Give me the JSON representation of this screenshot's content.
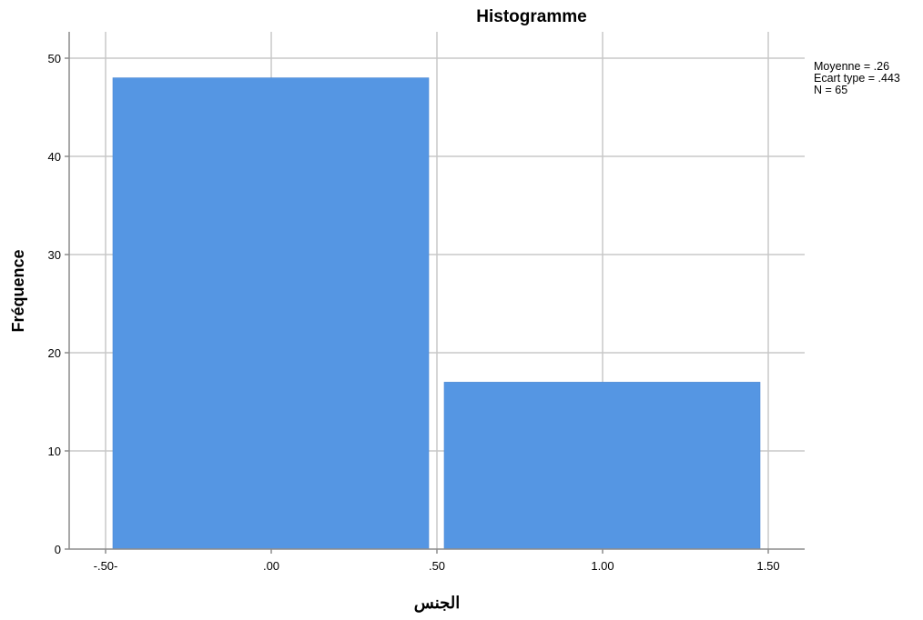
{
  "chart_data": {
    "type": "bar",
    "title": "Histogramme",
    "xlabel": "الجنس",
    "ylabel": "Fréquence",
    "bins": [
      {
        "from": -0.5,
        "to": 0.5,
        "value": 48
      },
      {
        "from": 0.5,
        "to": 1.5,
        "value": 17
      }
    ],
    "xlim": [
      -0.5,
      1.5
    ],
    "ylim": [
      0,
      50
    ],
    "x_ticks": [
      {
        "value": -0.5,
        "label": "-.50-"
      },
      {
        "value": 0.0,
        "label": ".00"
      },
      {
        "value": 0.5,
        "label": ".50"
      },
      {
        "value": 1.0,
        "label": "1.00"
      },
      {
        "value": 1.5,
        "label": "1.50"
      }
    ],
    "y_ticks": [
      {
        "value": 0,
        "label": "0"
      },
      {
        "value": 10,
        "label": "10"
      },
      {
        "value": 20,
        "label": "20"
      },
      {
        "value": 30,
        "label": "30"
      },
      {
        "value": 40,
        "label": "40"
      },
      {
        "value": 50,
        "label": "50"
      }
    ],
    "grid": true,
    "bar_color": "#5596e3",
    "grid_color": "#c8c8c8",
    "stats": {
      "mean": "Moyenne = .26",
      "std": "Ecart type = .443",
      "n": "N = 65"
    },
    "stats_position": "top-right"
  }
}
